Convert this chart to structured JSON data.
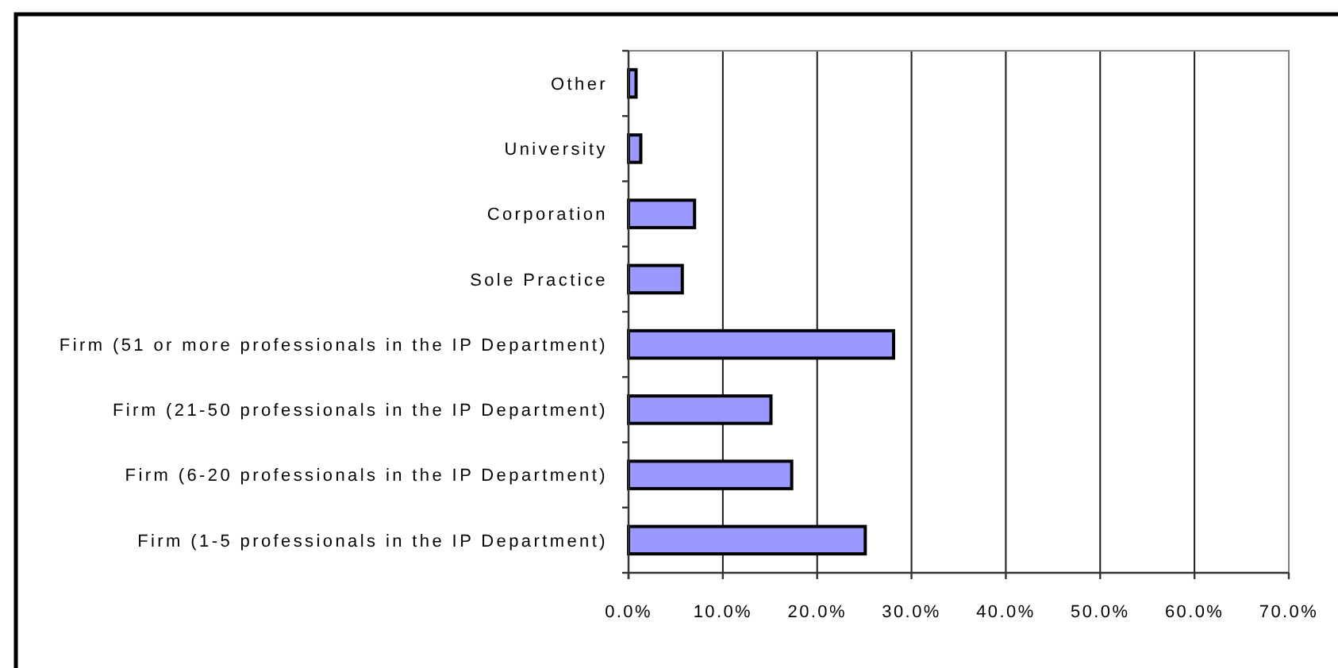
{
  "chart_data": {
    "type": "bar",
    "orientation": "horizontal",
    "categories": [
      "Other",
      "University",
      "Corporation",
      "Sole Practice",
      "Firm (51 or more professionals in the IP Department)",
      "Firm (21-50 professionals in the IP Department)",
      "Firm (6-20 professionals in the IP Department)",
      "Firm (1-5 professionals in the IP Department)"
    ],
    "values": [
      0.8,
      1.3,
      7.0,
      5.7,
      28.1,
      15.1,
      17.3,
      25.1
    ],
    "color": "#9999ff",
    "xlim": [
      0,
      70
    ],
    "xticks": [
      {
        "value": 0,
        "label": "0.0%"
      },
      {
        "value": 10,
        "label": "10.0%"
      },
      {
        "value": 20,
        "label": "20.0%"
      },
      {
        "value": 30,
        "label": "30.0%"
      },
      {
        "value": 40,
        "label": "40.0%"
      },
      {
        "value": 50,
        "label": "50.0%"
      },
      {
        "value": 60,
        "label": "60.0%"
      },
      {
        "value": 70,
        "label": "70.0%"
      }
    ],
    "grid": "x"
  }
}
